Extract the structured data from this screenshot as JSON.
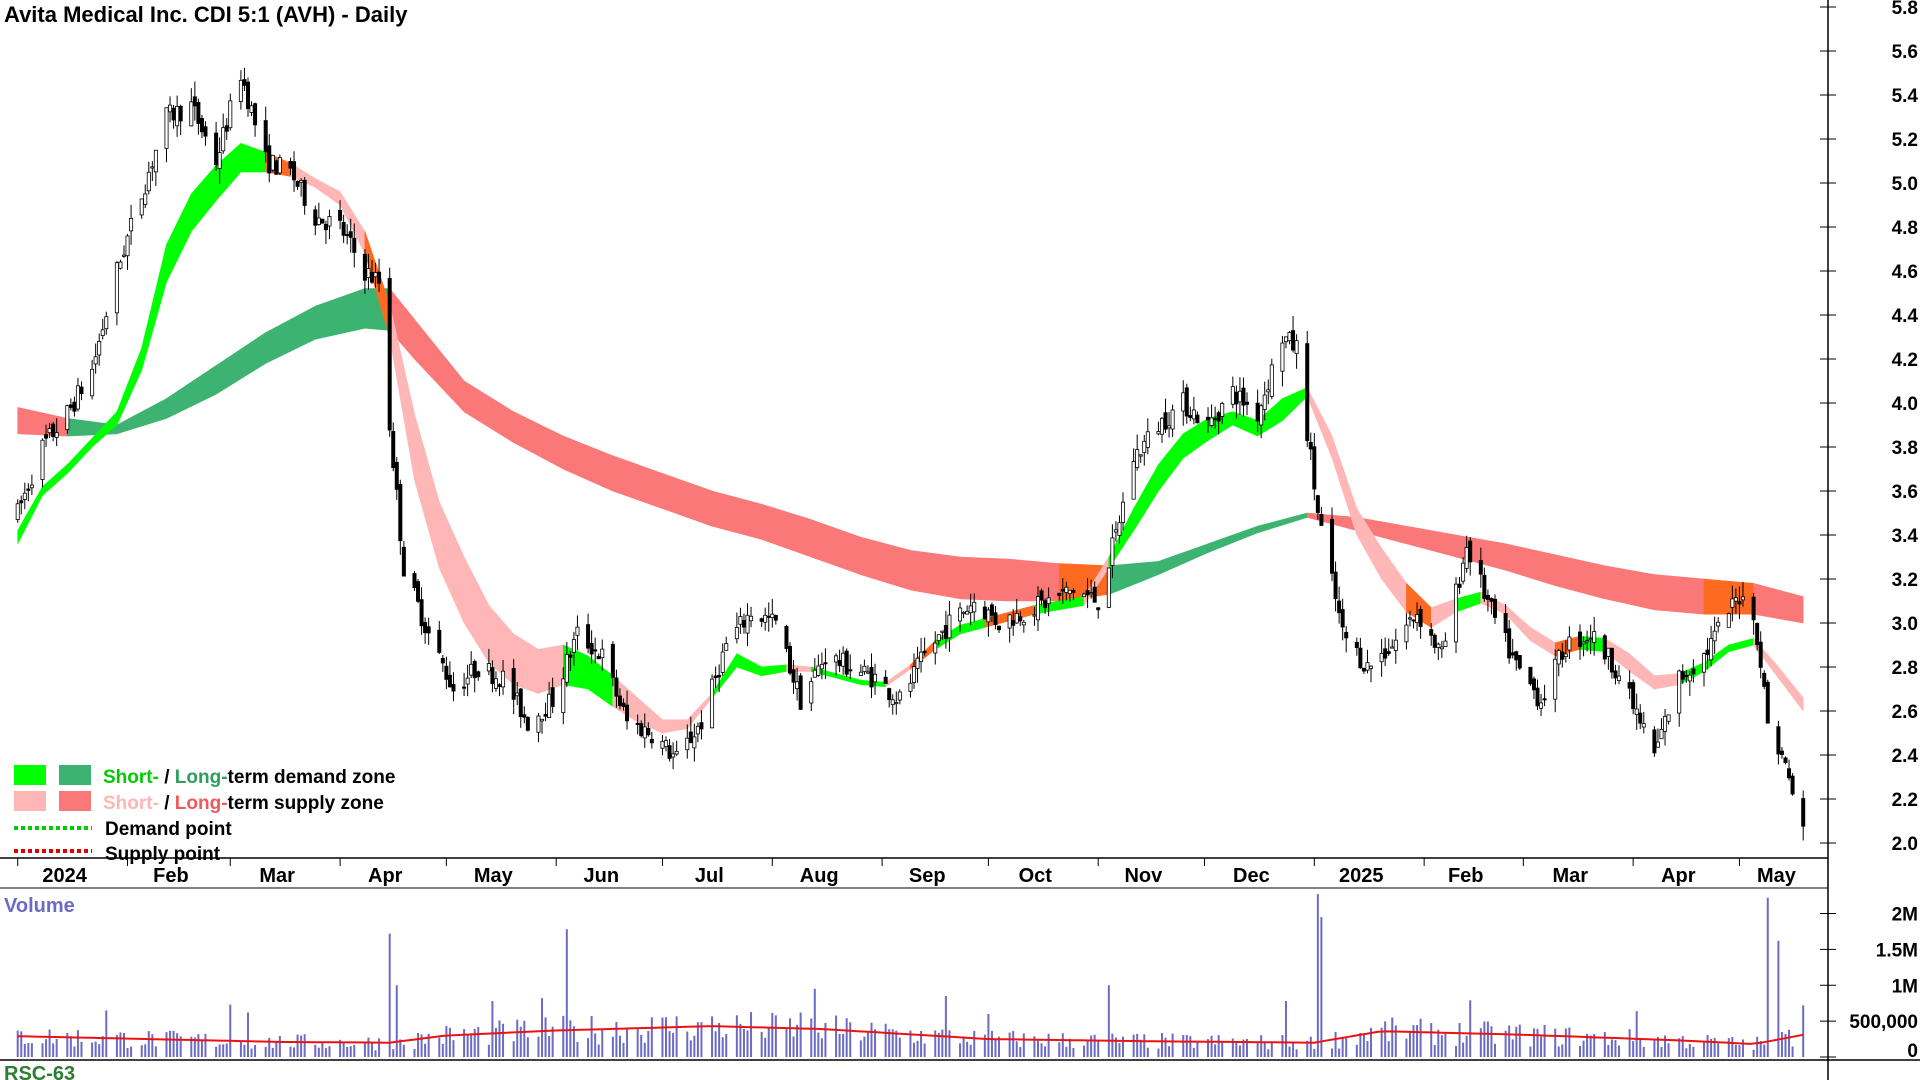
{
  "chart_data": {
    "type": "candlestick",
    "title": "Avita Medical Inc. CDI 5:1 (AVH) - Daily",
    "ylim": [
      2.0,
      5.8
    ],
    "yticks": [
      "2.0",
      "2.2",
      "2.4",
      "2.6",
      "2.8",
      "3.0",
      "3.2",
      "3.4",
      "3.6",
      "3.8",
      "4.0",
      "4.2",
      "4.4",
      "4.6",
      "4.8",
      "5.0",
      "5.2",
      "5.4",
      "5.6",
      "5.8"
    ],
    "xticks": [
      "2024",
      "Feb",
      "Mar",
      "Apr",
      "May",
      "Jun",
      "Jul",
      "Aug",
      "Sep",
      "Oct",
      "Nov",
      "Dec",
      "2025",
      "Feb",
      "Mar",
      "Apr",
      "May"
    ],
    "bold_xticks": [
      "2024",
      "2025"
    ],
    "price_curve": [
      [
        "2024-01-01",
        3.5
      ],
      [
        "2024-01-08",
        3.8
      ],
      [
        "2024-01-15",
        3.95
      ],
      [
        "2024-01-22",
        4.15
      ],
      [
        "2024-01-29",
        4.6
      ],
      [
        "2024-02-05",
        4.95
      ],
      [
        "2024-02-12",
        5.3
      ],
      [
        "2024-02-19",
        5.35
      ],
      [
        "2024-02-26",
        5.1
      ],
      [
        "2024-03-04",
        5.5
      ],
      [
        "2024-03-11",
        5.1
      ],
      [
        "2024-03-18",
        5.05
      ],
      [
        "2024-03-25",
        4.85
      ],
      [
        "2024-04-01",
        4.8
      ],
      [
        "2024-04-08",
        4.6
      ],
      [
        "2024-04-12",
        4.55
      ],
      [
        "2024-04-15",
        3.9
      ],
      [
        "2024-04-19",
        3.25
      ],
      [
        "2024-04-26",
        2.95
      ],
      [
        "2024-05-03",
        2.7
      ],
      [
        "2024-05-10",
        2.8
      ],
      [
        "2024-05-17",
        2.75
      ],
      [
        "2024-05-24",
        2.55
      ],
      [
        "2024-05-31",
        2.65
      ],
      [
        "2024-06-07",
        2.95
      ],
      [
        "2024-06-14",
        2.85
      ],
      [
        "2024-06-21",
        2.55
      ],
      [
        "2024-06-28",
        2.5
      ],
      [
        "2024-07-05",
        2.38
      ],
      [
        "2024-07-12",
        2.55
      ],
      [
        "2024-07-19",
        2.9
      ],
      [
        "2024-07-26",
        3.05
      ],
      [
        "2024-08-02",
        3.0
      ],
      [
        "2024-08-09",
        2.65
      ],
      [
        "2024-08-16",
        2.85
      ],
      [
        "2024-08-23",
        2.8
      ],
      [
        "2024-08-30",
        2.75
      ],
      [
        "2024-09-06",
        2.65
      ],
      [
        "2024-09-13",
        2.85
      ],
      [
        "2024-09-20",
        3.0
      ],
      [
        "2024-09-27",
        3.1
      ],
      [
        "2024-10-04",
        3.0
      ],
      [
        "2024-10-11",
        3.05
      ],
      [
        "2024-10-18",
        3.1
      ],
      [
        "2024-10-25",
        3.15
      ],
      [
        "2024-11-01",
        3.1
      ],
      [
        "2024-11-06",
        3.4
      ],
      [
        "2024-11-11",
        3.75
      ],
      [
        "2024-11-18",
        3.9
      ],
      [
        "2024-11-25",
        4.0
      ],
      [
        "2024-12-02",
        3.9
      ],
      [
        "2024-12-09",
        4.05
      ],
      [
        "2024-12-16",
        3.95
      ],
      [
        "2024-12-23",
        4.3
      ],
      [
        "2024-12-27",
        4.25
      ],
      [
        "2025-01-02",
        3.5
      ],
      [
        "2025-01-09",
        2.95
      ],
      [
        "2025-01-16",
        2.8
      ],
      [
        "2025-01-23",
        2.9
      ],
      [
        "2025-01-30",
        3.05
      ],
      [
        "2025-02-06",
        2.85
      ],
      [
        "2025-02-13",
        3.35
      ],
      [
        "2025-02-20",
        3.05
      ],
      [
        "2025-02-27",
        2.8
      ],
      [
        "2025-03-06",
        2.65
      ],
      [
        "2025-03-13",
        2.9
      ],
      [
        "2025-03-20",
        2.95
      ],
      [
        "2025-03-27",
        2.8
      ],
      [
        "2025-04-03",
        2.55
      ],
      [
        "2025-04-07",
        2.4
      ],
      [
        "2025-04-14",
        2.75
      ],
      [
        "2025-04-21",
        2.85
      ],
      [
        "2025-04-28",
        3.05
      ],
      [
        "2025-05-02",
        3.15
      ],
      [
        "2025-05-06",
        2.95
      ],
      [
        "2025-05-09",
        2.55
      ],
      [
        "2025-05-14",
        2.35
      ],
      [
        "2025-05-19",
        2.05
      ]
    ],
    "short_term_zone": [
      [
        "2024-01-01",
        3.36,
        3.42
      ],
      [
        "2024-01-08",
        3.58,
        3.62
      ],
      [
        "2024-01-15",
        3.68,
        3.72
      ],
      [
        "2024-01-22",
        3.8,
        3.84
      ],
      [
        "2024-01-29",
        3.9,
        3.96
      ],
      [
        "2024-02-05",
        4.15,
        4.25
      ],
      [
        "2024-02-12",
        4.55,
        4.72
      ],
      [
        "2024-02-19",
        4.78,
        4.95
      ],
      [
        "2024-02-26",
        4.92,
        5.08
      ],
      [
        "2024-03-04",
        5.05,
        5.18
      ],
      [
        "2024-03-11",
        5.05,
        5.14
      ],
      [
        "2024-03-18",
        5.03,
        5.09
      ],
      [
        "2024-03-25",
        4.98,
        5.02
      ],
      [
        "2024-04-01",
        4.9,
        4.96
      ],
      [
        "2024-04-08",
        4.68,
        4.78
      ],
      [
        "2024-04-15",
        4.3,
        4.45
      ],
      [
        "2024-04-22",
        3.65,
        3.95
      ],
      [
        "2024-04-29",
        3.25,
        3.55
      ],
      [
        "2024-05-06",
        3.0,
        3.3
      ],
      [
        "2024-05-13",
        2.82,
        3.08
      ],
      [
        "2024-05-20",
        2.72,
        2.95
      ],
      [
        "2024-05-27",
        2.68,
        2.88
      ],
      [
        "2024-06-03",
        2.72,
        2.9
      ],
      [
        "2024-06-10",
        2.7,
        2.85
      ],
      [
        "2024-06-17",
        2.62,
        2.76
      ],
      [
        "2024-06-24",
        2.55,
        2.66
      ],
      [
        "2024-07-01",
        2.5,
        2.56
      ],
      [
        "2024-07-08",
        2.52,
        2.56
      ],
      [
        "2024-07-15",
        2.66,
        2.68
      ],
      [
        "2024-07-22",
        2.8,
        2.86
      ],
      [
        "2024-07-29",
        2.76,
        2.8
      ],
      [
        "2024-08-05",
        2.78,
        2.81
      ],
      [
        "2024-08-12",
        2.78,
        2.8
      ],
      [
        "2024-08-19",
        2.75,
        2.77
      ],
      [
        "2024-08-26",
        2.72,
        2.74
      ],
      [
        "2024-09-02",
        2.71,
        2.73
      ],
      [
        "2024-09-09",
        2.79,
        2.81
      ],
      [
        "2024-09-16",
        2.88,
        2.92
      ],
      [
        "2024-09-23",
        2.95,
        2.99
      ],
      [
        "2024-09-30",
        2.98,
        3.02
      ],
      [
        "2024-10-07",
        3.01,
        3.05
      ],
      [
        "2024-10-14",
        3.04,
        3.08
      ],
      [
        "2024-10-21",
        3.06,
        3.1
      ],
      [
        "2024-10-28",
        3.08,
        3.12
      ],
      [
        "2024-11-04",
        3.25,
        3.3
      ],
      [
        "2024-11-11",
        3.42,
        3.52
      ],
      [
        "2024-11-18",
        3.6,
        3.72
      ],
      [
        "2024-11-25",
        3.75,
        3.86
      ],
      [
        "2024-12-02",
        3.83,
        3.93
      ],
      [
        "2024-12-09",
        3.9,
        3.96
      ],
      [
        "2024-12-16",
        3.85,
        3.92
      ],
      [
        "2024-12-23",
        3.92,
        4.02
      ],
      [
        "2024-12-30",
        4.03,
        4.07
      ],
      [
        "2025-01-06",
        3.75,
        3.85
      ],
      [
        "2025-01-13",
        3.4,
        3.52
      ],
      [
        "2025-01-20",
        3.2,
        3.34
      ],
      [
        "2025-01-27",
        3.05,
        3.18
      ],
      [
        "2025-02-03",
        2.98,
        3.07
      ],
      [
        "2025-02-10",
        3.05,
        3.11
      ],
      [
        "2025-02-17",
        3.09,
        3.14
      ],
      [
        "2025-02-24",
        3.04,
        3.08
      ],
      [
        "2025-03-03",
        2.92,
        2.98
      ],
      [
        "2025-03-10",
        2.85,
        2.91
      ],
      [
        "2025-03-17",
        2.88,
        2.94
      ],
      [
        "2025-03-24",
        2.87,
        2.93
      ],
      [
        "2025-03-31",
        2.78,
        2.86
      ],
      [
        "2025-04-07",
        2.7,
        2.76
      ],
      [
        "2025-04-14",
        2.72,
        2.77
      ],
      [
        "2025-04-21",
        2.78,
        2.82
      ],
      [
        "2025-04-28",
        2.87,
        2.9
      ],
      [
        "2025-05-05",
        2.9,
        2.93
      ],
      [
        "2025-05-12",
        2.75,
        2.8
      ],
      [
        "2025-05-19",
        2.6,
        2.66
      ]
    ],
    "long_term_zone": [
      [
        "2024-01-01",
        3.86,
        3.98
      ],
      [
        "2024-01-15",
        3.85,
        3.93
      ],
      [
        "2024-01-29",
        3.86,
        3.9
      ],
      [
        "2024-02-12",
        3.93,
        4.02
      ],
      [
        "2024-02-26",
        4.04,
        4.17
      ],
      [
        "2024-03-11",
        4.18,
        4.32
      ],
      [
        "2024-03-25",
        4.29,
        4.44
      ],
      [
        "2024-04-08",
        4.34,
        4.52
      ],
      [
        "2024-04-15",
        4.33,
        4.52
      ],
      [
        "2024-04-22",
        4.2,
        4.38
      ],
      [
        "2024-05-06",
        3.96,
        4.1
      ],
      [
        "2024-05-20",
        3.82,
        3.96
      ],
      [
        "2024-06-03",
        3.7,
        3.85
      ],
      [
        "2024-06-17",
        3.6,
        3.76
      ],
      [
        "2024-07-01",
        3.52,
        3.68
      ],
      [
        "2024-07-15",
        3.44,
        3.6
      ],
      [
        "2024-07-29",
        3.38,
        3.54
      ],
      [
        "2024-08-12",
        3.3,
        3.47
      ],
      [
        "2024-08-26",
        3.22,
        3.39
      ],
      [
        "2024-09-09",
        3.15,
        3.33
      ],
      [
        "2024-09-23",
        3.11,
        3.3
      ],
      [
        "2024-10-07",
        3.1,
        3.29
      ],
      [
        "2024-10-21",
        3.1,
        3.27
      ],
      [
        "2024-11-04",
        3.13,
        3.26
      ],
      [
        "2024-11-18",
        3.22,
        3.28
      ],
      [
        "2024-12-02",
        3.32,
        3.36
      ],
      [
        "2024-12-16",
        3.41,
        3.44
      ],
      [
        "2024-12-30",
        3.48,
        3.5
      ],
      [
        "2025-01-13",
        3.42,
        3.48
      ],
      [
        "2025-01-27",
        3.36,
        3.44
      ],
      [
        "2025-02-10",
        3.3,
        3.4
      ],
      [
        "2025-02-24",
        3.24,
        3.36
      ],
      [
        "2025-03-10",
        3.17,
        3.31
      ],
      [
        "2025-03-24",
        3.11,
        3.26
      ],
      [
        "2025-04-07",
        3.06,
        3.22
      ],
      [
        "2025-04-21",
        3.04,
        3.2
      ],
      [
        "2025-05-05",
        3.04,
        3.18
      ],
      [
        "2025-05-19",
        3.0,
        3.12
      ]
    ],
    "volume": {
      "yticks": [
        "2M",
        "1.5M",
        "1M",
        "500,000",
        "0"
      ],
      "tick_values": [
        2000000,
        1500000,
        1000000,
        500000,
        0
      ],
      "ylim": [
        0,
        2300000
      ],
      "spikes": [
        [
          "2024-01-26",
          650000
        ],
        [
          "2024-03-01",
          730000
        ],
        [
          "2024-03-06",
          620000
        ],
        [
          "2024-04-15",
          1720000
        ],
        [
          "2024-04-17",
          1000000
        ],
        [
          "2024-05-14",
          780000
        ],
        [
          "2024-05-28",
          820000
        ],
        [
          "2024-06-04",
          1780000
        ],
        [
          "2024-08-09",
          620000
        ],
        [
          "2024-08-13",
          950000
        ],
        [
          "2024-09-19",
          850000
        ],
        [
          "2024-10-01",
          600000
        ],
        [
          "2024-11-04",
          1000000
        ],
        [
          "2024-12-24",
          780000
        ],
        [
          "2025-01-02",
          2270000
        ],
        [
          "2025-01-03",
          1950000
        ],
        [
          "2025-02-14",
          790000
        ],
        [
          "2025-04-02",
          640000
        ],
        [
          "2025-05-09",
          2220000
        ],
        [
          "2025-05-12",
          1620000
        ],
        [
          "2025-05-19",
          720000
        ]
      ],
      "ma_curve": [
        [
          "2024-01-01",
          290000
        ],
        [
          "2024-03-15",
          210000
        ],
        [
          "2024-04-15",
          200000
        ],
        [
          "2024-05-01",
          300000
        ],
        [
          "2024-06-01",
          370000
        ],
        [
          "2024-07-15",
          430000
        ],
        [
          "2024-08-15",
          390000
        ],
        [
          "2024-10-01",
          250000
        ],
        [
          "2024-11-15",
          220000
        ],
        [
          "2025-01-01",
          200000
        ],
        [
          "2025-01-20",
          360000
        ],
        [
          "2025-03-01",
          310000
        ],
        [
          "2025-04-15",
          230000
        ],
        [
          "2025-05-05",
          180000
        ],
        [
          "2025-05-19",
          310000
        ]
      ]
    }
  },
  "legend": {
    "demand_short": "Short-",
    "demand_sep": " / ",
    "demand_long": "Long-",
    "demand_rest": "term demand zone",
    "supply_short": "Short-",
    "supply_sep": " / ",
    "supply_long": "Long-",
    "supply_rest": "term supply zone",
    "demand_point": "Demand point",
    "supply_point": "Supply point"
  },
  "colors": {
    "short_demand": "#00ff00",
    "long_demand": "#3cb371",
    "short_supply": "#ffb6b6",
    "long_supply": "#fa7878",
    "transition": "#ff6a22",
    "volume_bar": "#6b6bc4",
    "volume_ma": "#ee1111",
    "demand_text": "#00cc00",
    "long_demand_text": "#2e9e5e",
    "short_supply_text": "#ffb6b6",
    "long_supply_text": "#ee5a5a",
    "volume_label": "#6b6bc4",
    "rsc_label": "#2e7d32"
  },
  "volume_label": "Volume",
  "lower_panel_label": "RSC-63"
}
